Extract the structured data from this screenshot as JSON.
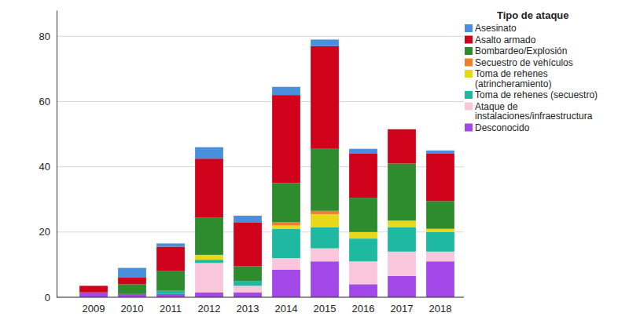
{
  "chart_data": {
    "type": "bar",
    "stacked": true,
    "grid": true,
    "legend": "right",
    "legend_title": "Tipo de ataque",
    "categories": [
      "2009",
      "2010",
      "2011",
      "2012",
      "2013",
      "2014",
      "2015",
      "2016",
      "2017",
      "2018"
    ],
    "ylim": [
      0,
      88
    ],
    "yticks": [
      0,
      20,
      40,
      60,
      80
    ],
    "series": [
      {
        "name": "Desconocido",
        "color": "#a348e8",
        "values": [
          1.5,
          1,
          1,
          1.5,
          1.5,
          8.5,
          11,
          4,
          6.5,
          11
        ]
      },
      {
        "name": "Ataque de\ninstalaciones/infraestructura",
        "color": "#f9c6dc",
        "values": [
          0,
          0,
          0,
          9,
          2,
          3.5,
          4,
          7,
          7.5,
          3
        ]
      },
      {
        "name": "Toma de rehenes (secuestro)",
        "color": "#1fb8a0",
        "values": [
          0,
          0,
          1,
          1,
          1.5,
          9,
          6.5,
          7,
          7.5,
          6
        ]
      },
      {
        "name": "Toma de rehenes\n(atrincheramiento)",
        "color": "#e8d81c",
        "values": [
          0,
          0,
          0,
          1.5,
          0,
          1,
          4,
          2,
          2,
          1
        ]
      },
      {
        "name": "Secuestro de vehículos",
        "color": "#f07d2a",
        "values": [
          0,
          0,
          0,
          0,
          0,
          1,
          1,
          0,
          0,
          0
        ]
      },
      {
        "name": "Bombardeo/Explosión",
        "color": "#2e8b2e",
        "values": [
          0,
          3,
          6,
          11.5,
          4.5,
          12,
          19,
          10.5,
          17.5,
          8.5
        ]
      },
      {
        "name": "Asalto armado",
        "color": "#d0021b",
        "values": [
          2,
          2,
          7.5,
          18,
          13.5,
          27,
          31.5,
          13.5,
          10.5,
          14.5
        ]
      },
      {
        "name": "Asesinato",
        "color": "#4a8fdb",
        "values": [
          0,
          3,
          1,
          3.5,
          2,
          2.5,
          2,
          1.5,
          0,
          1
        ]
      }
    ]
  }
}
